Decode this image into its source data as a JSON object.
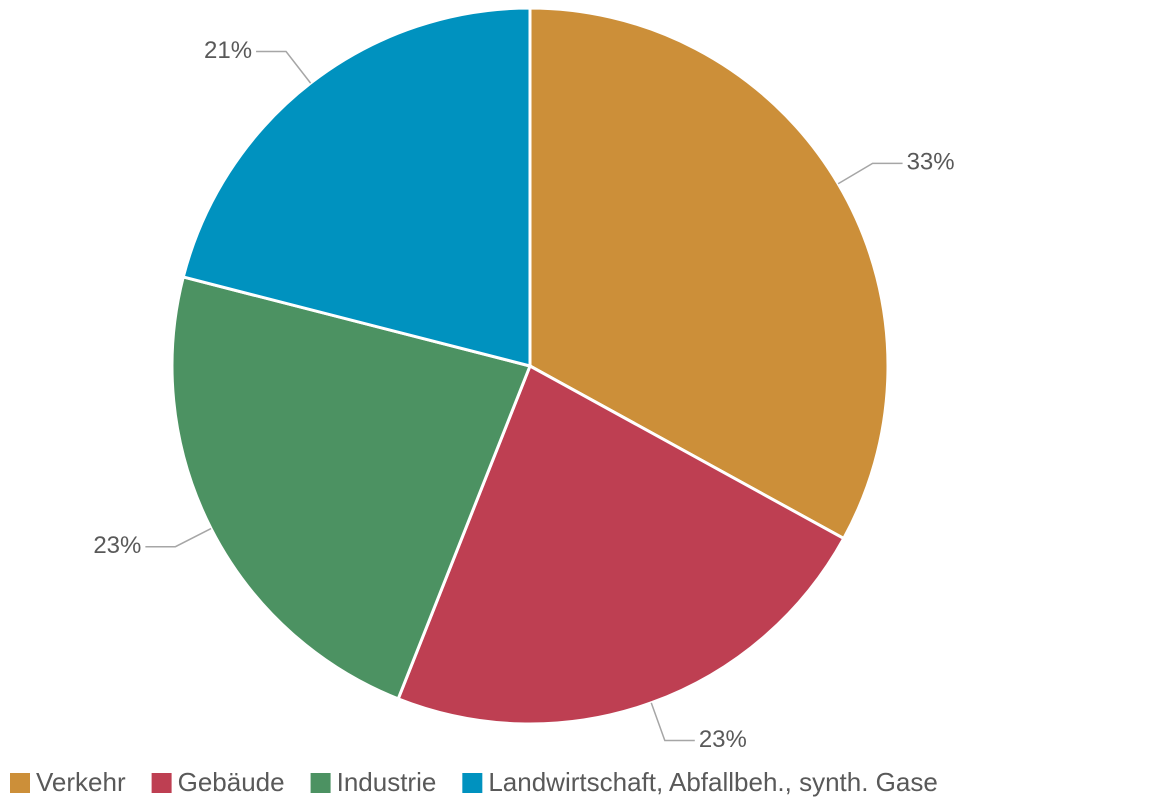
{
  "chart_data": {
    "type": "pie",
    "categories": [
      "Verkehr",
      "Gebäude",
      "Industrie",
      "Landwirtschaft, Abfallbeh., synth. Gase"
    ],
    "values": [
      33,
      23,
      23,
      21
    ],
    "value_labels": [
      "33%",
      "23%",
      "23%",
      "21%"
    ],
    "colors": [
      "#CC8F39",
      "#BE3F52",
      "#4C9262",
      "#0092BF"
    ],
    "legend": "bottom"
  }
}
